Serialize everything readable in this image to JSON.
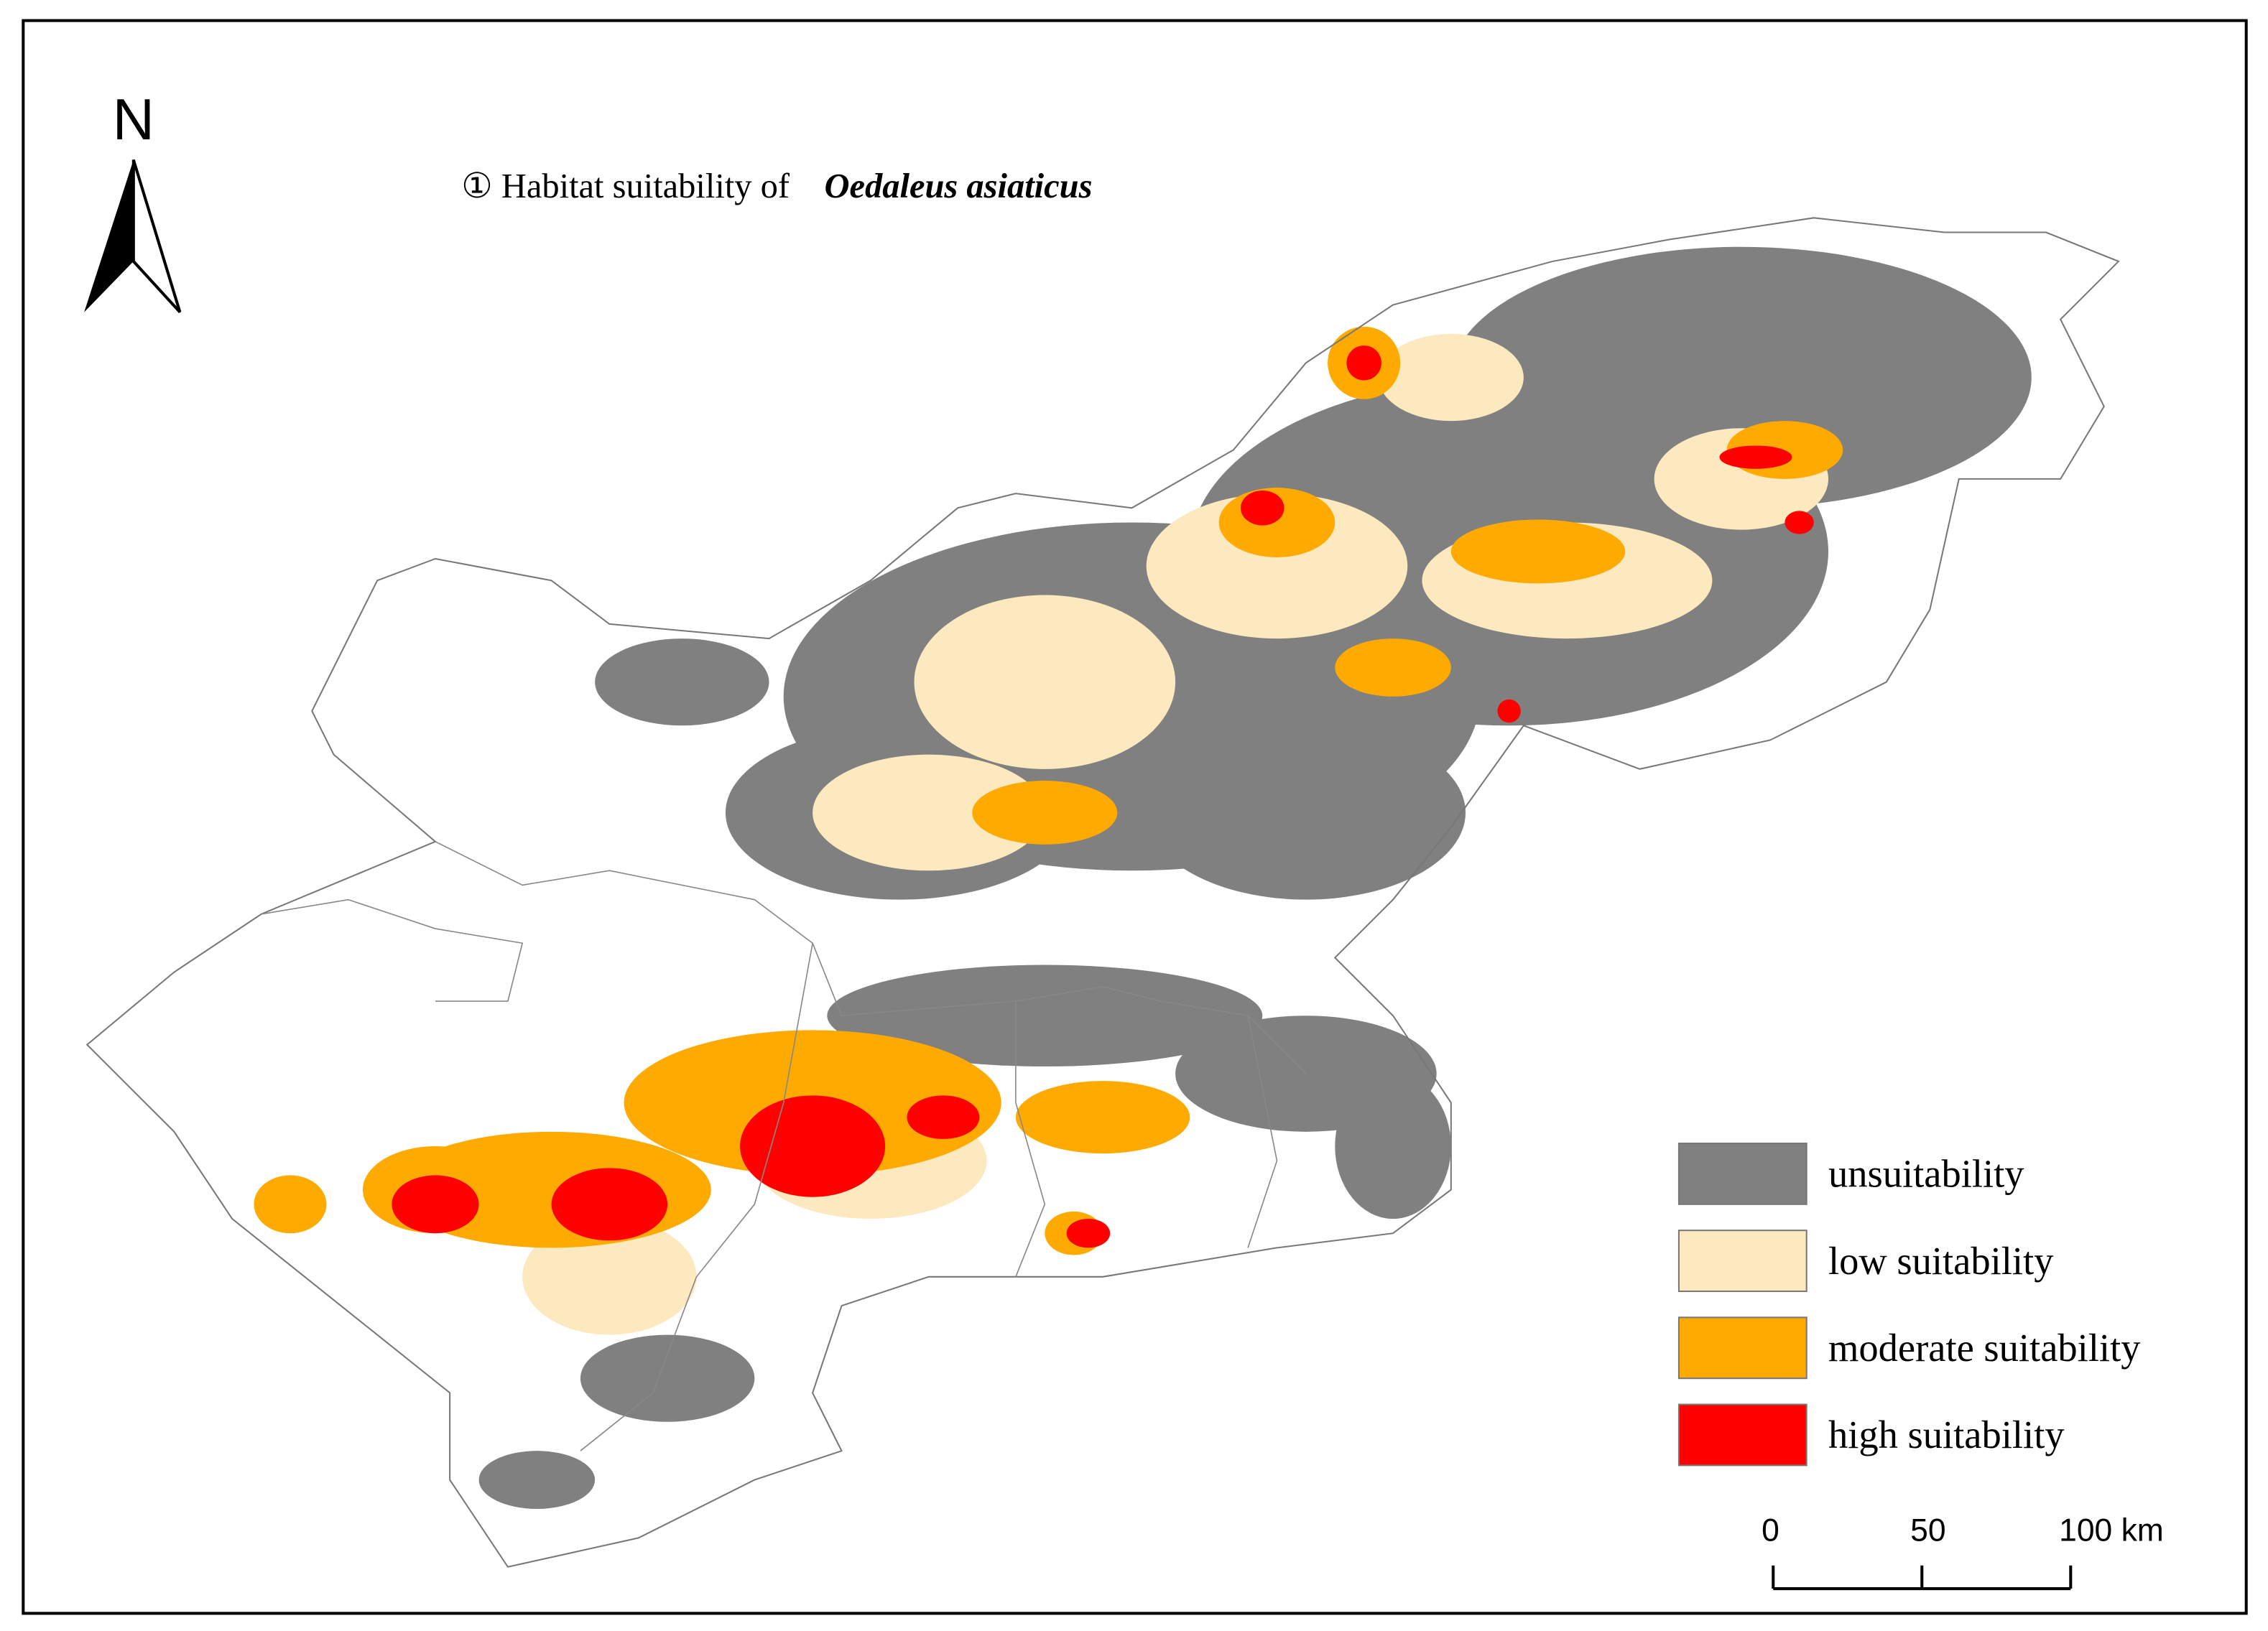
{
  "map": {
    "title": {
      "prefix": "①  Habitat suitability of",
      "species": "Oedaleus asiaticus"
    },
    "north_label": "N",
    "legend": [
      {
        "label": "unsuitability",
        "color": "#808080"
      },
      {
        "label": "low suitability",
        "color": "#fde9bf"
      },
      {
        "label": "moderate suitability",
        "color": "#ffaa00"
      },
      {
        "label": "high suitability",
        "color": "#ff0000"
      }
    ],
    "scale_bar": {
      "ticks": [
        0,
        50,
        {
          "value": 100,
          "label": "100 km"
        }
      ]
    }
  }
}
